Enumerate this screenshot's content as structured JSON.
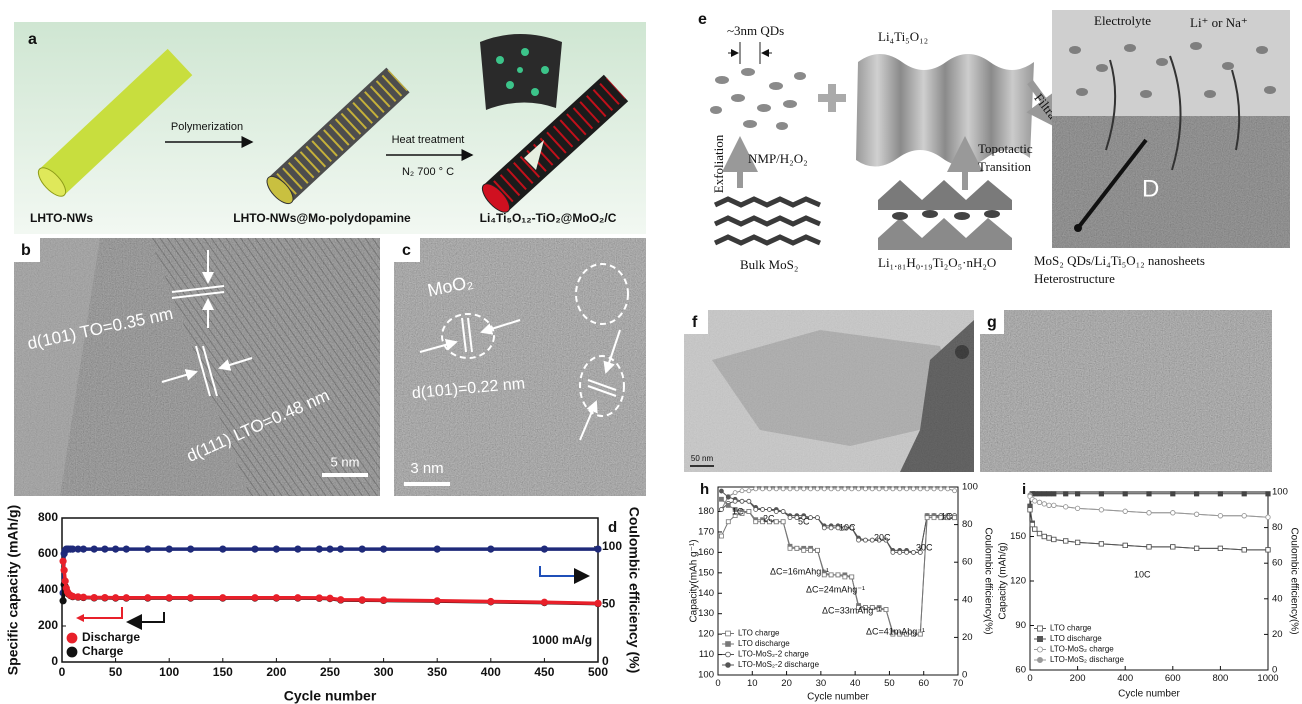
{
  "panel_a": {
    "label": "a",
    "steps": [
      "Polymerization",
      "Heat treatment"
    ],
    "condition": "N₂ 700 ° C",
    "stages": [
      "LHTO-NWs",
      "LHTO-NWs@Mo-polydopamine",
      "Li₄Ti₅O₁₂-TiO₂@MoO₂/C"
    ]
  },
  "panel_b": {
    "label": "b",
    "annotations": [
      "d(101) TO=0.35 nm",
      "d(111) LTO=0.48 nm"
    ],
    "scale_bar": "5 nm"
  },
  "panel_c": {
    "label": "c",
    "annotations": [
      "MoO₂",
      "d(101)=0.22 nm"
    ],
    "scale_bar": "3 nm"
  },
  "panel_e": {
    "label": "e",
    "qds": "~3nm QDs",
    "lto": "Li₄Ti₅O₁₂",
    "electrolyte": "Electrolyte",
    "ions": "Li⁺ or Na⁺",
    "filtration": "Filtration",
    "exfoliation": "Exfoliation",
    "solvent": "NMP/H₂O₂",
    "transition": [
      "Topotactic",
      "Transition"
    ],
    "diffusion": "D",
    "bulk": "Bulk MoS₂",
    "precursor": "Li₁.₈₁H₀.₁₉Ti₂O₅·nH₂O",
    "product": [
      "MoS₂ QDs/Li₄Ti₅O₁₂ nanosheets",
      "Heterostructure"
    ]
  },
  "panel_f": {
    "label": "f",
    "scale_bar": "50 nm"
  },
  "panel_g": {
    "label": "g"
  },
  "chart_data": [
    {
      "type": "line",
      "label": "d",
      "xlabel": "Cycle number",
      "ylabel": "Specific capacity (mAh/g)",
      "y2label": "Coulombic efficiency (%)",
      "x": [
        1,
        2,
        3,
        4,
        5,
        6,
        8,
        10,
        15,
        20,
        30,
        40,
        50,
        60,
        80,
        100,
        120,
        150,
        180,
        200,
        220,
        240,
        250,
        260,
        280,
        300,
        350,
        400,
        450,
        500
      ],
      "xlim": [
        0,
        500
      ],
      "xticks": [
        0,
        50,
        100,
        150,
        200,
        250,
        300,
        350,
        400,
        450,
        500
      ],
      "ylim": [
        0,
        800
      ],
      "yticks": [
        0,
        200,
        400,
        600,
        800
      ],
      "y2lim": [
        0,
        125
      ],
      "y2ticks": [
        0,
        50,
        100
      ],
      "legend": "lower left",
      "annotations": [
        "1000 mA/g"
      ],
      "series": [
        {
          "name": "Discharge",
          "color": "#e8202a",
          "marker": "circle",
          "open": false,
          "values": [
            560,
            510,
            450,
            410,
            390,
            380,
            370,
            365,
            362,
            360,
            358,
            358,
            357,
            357,
            357,
            357,
            357,
            357,
            357,
            357,
            357,
            356,
            354,
            346,
            345,
            344,
            340,
            336,
            332,
            326
          ]
        },
        {
          "name": "Charge",
          "color": "#111111",
          "marker": "circle",
          "open": false,
          "values": [
            340,
            430,
            420,
            400,
            385,
            377,
            368,
            363,
            360,
            358,
            356,
            356,
            355,
            355,
            355,
            355,
            355,
            355,
            355,
            355,
            355,
            354,
            352,
            344,
            343,
            342,
            338,
            334,
            330,
            324
          ]
        },
        {
          "color": "#1f2a7a",
          "axis": "y2",
          "marker": "circle",
          "open": false,
          "values": [
            60,
            94,
            97,
            98,
            98,
            98,
            98,
            98,
            98,
            98,
            98,
            98,
            98,
            98,
            98,
            98,
            98,
            98,
            98,
            98,
            98,
            98,
            98,
            98,
            98,
            98,
            98,
            98,
            98,
            98
          ]
        }
      ]
    },
    {
      "type": "line",
      "label": "h",
      "xlabel": "Cycle number",
      "ylabel": "Capacity(mAh g⁻¹)",
      "y2label": "Coulombic efficiency(%)",
      "x": [
        1,
        3,
        5,
        7,
        9,
        11,
        13,
        15,
        17,
        19,
        21,
        23,
        25,
        27,
        29,
        31,
        33,
        35,
        37,
        39,
        41,
        43,
        45,
        47,
        49,
        51,
        53,
        55,
        57,
        59,
        61,
        63,
        65,
        67,
        69
      ],
      "xlim": [
        0,
        70
      ],
      "xticks": [
        0,
        10,
        20,
        30,
        40,
        50,
        60,
        70
      ],
      "ylim": [
        100,
        192
      ],
      "yticks": [
        100,
        110,
        120,
        130,
        140,
        150,
        160,
        170,
        180
      ],
      "y2lim": [
        0,
        100
      ],
      "y2ticks": [
        0,
        20,
        40,
        60,
        80,
        100
      ],
      "legend": "lower left",
      "annotations": [
        "1C",
        "2C",
        "5C",
        "10C",
        "20C",
        "30C",
        "1C",
        "ΔC=16mAhg⁻¹",
        "ΔC=24mAhg⁻¹",
        "ΔC=33mAhg⁻¹",
        "ΔC=41mAhg⁻¹"
      ],
      "series": [
        {
          "name": "LTO charge",
          "color": "#777777",
          "marker": "square",
          "open": true,
          "values": [
            168,
            175,
            178,
            179,
            180,
            175,
            175,
            175,
            175,
            175,
            162,
            162,
            161,
            161,
            161,
            149,
            149,
            149,
            148,
            148,
            133,
            133,
            133,
            132,
            132,
            120,
            120,
            120,
            120,
            120,
            177,
            177,
            177,
            177,
            177
          ]
        },
        {
          "name": "LTO discharge",
          "color": "#777777",
          "marker": "square",
          "open": false,
          "values": [
            186,
            183,
            181,
            180,
            180,
            176,
            176,
            175,
            175,
            175,
            163,
            162,
            162,
            162,
            161,
            150,
            149,
            149,
            149,
            148,
            134,
            133,
            133,
            133,
            132,
            121,
            120,
            120,
            120,
            120,
            178,
            178,
            177,
            177,
            177
          ]
        },
        {
          "name": "LTO-MoS₂-2 charge",
          "color": "#555555",
          "marker": "circle",
          "open": true,
          "values": [
            181,
            184,
            185,
            185,
            185,
            181,
            181,
            181,
            180,
            180,
            177,
            177,
            177,
            177,
            177,
            172,
            172,
            172,
            172,
            172,
            166,
            166,
            166,
            166,
            166,
            160,
            160,
            160,
            160,
            160,
            178,
            178,
            178,
            178,
            178
          ]
        },
        {
          "name": "LTO-MoS₂-2 discharge",
          "color": "#555555",
          "marker": "circle",
          "open": false,
          "values": [
            190,
            187,
            186,
            185,
            185,
            182,
            181,
            181,
            181,
            180,
            178,
            178,
            178,
            177,
            177,
            173,
            173,
            173,
            172,
            172,
            167,
            166,
            166,
            166,
            166,
            161,
            161,
            161,
            160,
            160,
            178,
            178,
            178,
            178,
            178
          ]
        },
        {
          "color": "#888888",
          "axis": "y2",
          "marker": "circle",
          "open": true,
          "values": [
            88,
            95,
            97,
            98,
            98,
            99,
            99,
            99,
            99,
            99,
            99,
            99,
            99,
            99,
            99,
            99,
            99,
            99,
            99,
            99,
            99,
            99,
            99,
            99,
            99,
            99,
            99,
            99,
            99,
            99,
            99,
            99,
            99,
            99,
            98
          ]
        }
      ]
    },
    {
      "type": "line",
      "label": "i",
      "xlabel": "Cycle number",
      "ylabel": "Capacity (mAh/g)",
      "y2label": "Coulombic efficiency(%)",
      "x": [
        0,
        10,
        20,
        40,
        60,
        80,
        100,
        150,
        200,
        300,
        400,
        500,
        600,
        700,
        800,
        900,
        1000
      ],
      "xlim": [
        0,
        1000
      ],
      "xticks": [
        0,
        200,
        400,
        600,
        800,
        1000
      ],
      "ylim": [
        60,
        180
      ],
      "yticks": [
        60,
        90,
        120,
        150
      ],
      "y2lim": [
        0,
        100
      ],
      "y2ticks": [
        0,
        20,
        40,
        60,
        80,
        100
      ],
      "legend": "lower left",
      "annotations": [
        "10C"
      ],
      "series": [
        {
          "name": "LTO charge",
          "color": "#555555",
          "marker": "square",
          "open": true,
          "values": [
            168,
            158,
            155,
            152,
            150,
            149,
            148,
            147,
            146,
            145,
            144,
            143,
            143,
            142,
            142,
            141,
            141
          ]
        },
        {
          "name": "LTO discharge",
          "color": "#555555",
          "marker": "square",
          "open": false,
          "values": [
            170,
            159,
            155,
            152,
            150,
            149,
            148,
            147,
            146,
            145,
            144,
            143,
            143,
            142,
            142,
            141,
            141
          ]
        },
        {
          "name": "LTO-MoS₂ charge",
          "color": "#999999",
          "marker": "circle",
          "open": true,
          "values": [
            177,
            175,
            174,
            173,
            172,
            171,
            171,
            170,
            169,
            168,
            167,
            166,
            166,
            165,
            164,
            164,
            163
          ]
        },
        {
          "name": "LTO-MoS₂ discharge",
          "color": "#999999",
          "marker": "circle",
          "open": false,
          "values": [
            178,
            175,
            174,
            173,
            172,
            171,
            171,
            170,
            169,
            168,
            167,
            166,
            166,
            165,
            164,
            164,
            163
          ]
        },
        {
          "color": "#444444",
          "axis": "y2",
          "marker": "square",
          "open": false,
          "values": [
            92,
            99,
            99,
            99,
            99,
            99,
            99,
            99,
            99,
            99,
            99,
            99,
            99,
            99,
            99,
            99,
            99
          ]
        }
      ]
    }
  ]
}
